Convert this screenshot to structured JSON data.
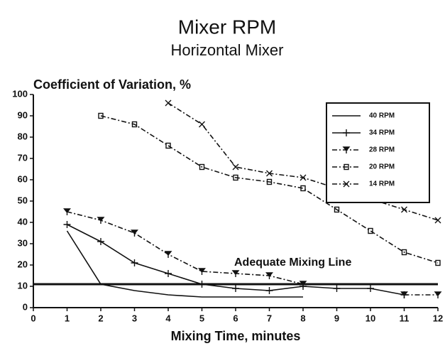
{
  "chart_data": {
    "type": "line",
    "title": "Mixer RPM",
    "subtitle": "Horizontal Mixer",
    "y_label": "Coefficient of Variation, %",
    "x_label": "Mixing Time, minutes",
    "x": [
      0,
      1,
      2,
      3,
      4,
      5,
      6,
      7,
      8,
      9,
      10,
      11,
      12
    ],
    "series": [
      {
        "name": "40 RPM",
        "color": "#111111",
        "marker": "none",
        "dash": "solid",
        "values": [
          null,
          36,
          11,
          8,
          6,
          5,
          5,
          5,
          5,
          null,
          null,
          null,
          null
        ]
      },
      {
        "name": "34 RPM",
        "color": "#111111",
        "marker": "plus",
        "dash": "solid",
        "values": [
          null,
          39,
          31,
          21,
          16,
          11,
          9,
          8,
          10,
          9,
          9,
          6,
          null
        ]
      },
      {
        "name": "28 RPM",
        "color": "#111111",
        "marker": "triangle",
        "dash": "dashdot",
        "values": [
          null,
          45,
          41,
          35,
          25,
          17,
          16,
          15,
          11,
          null,
          null,
          6,
          6
        ]
      },
      {
        "name": "20 RPM",
        "color": "#111111",
        "marker": "square",
        "dash": "dashdot",
        "values": [
          null,
          null,
          90,
          86,
          76,
          66,
          61,
          59,
          56,
          46,
          36,
          26,
          21
        ]
      },
      {
        "name": "14 RPM",
        "color": "#111111",
        "marker": "x",
        "dash": "dashdot",
        "values": [
          null,
          null,
          null,
          null,
          96,
          86,
          66,
          63,
          61,
          56,
          51,
          46,
          41
        ]
      }
    ],
    "reference_line": {
      "value": 11,
      "label": "Adequate Mixing Line"
    },
    "xlim": [
      0,
      12
    ],
    "xticks": [
      0,
      1,
      2,
      3,
      4,
      5,
      6,
      7,
      8,
      9,
      10,
      11,
      12
    ],
    "ylim": [
      0,
      100
    ],
    "yticks": [
      0,
      10,
      20,
      30,
      40,
      50,
      60,
      70,
      80,
      90,
      100
    ],
    "grid": false,
    "legend": "upper right"
  }
}
